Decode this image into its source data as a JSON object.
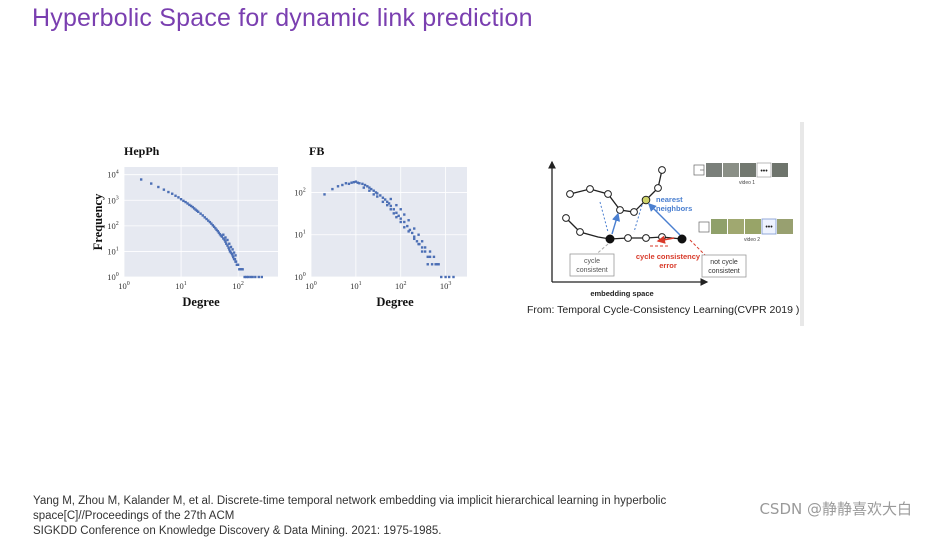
{
  "slide": {
    "title": "Hyperbolic Space for dynamic link prediction"
  },
  "chart_data": [
    {
      "type": "scatter",
      "title": "HepPh",
      "xlabel": "Degree",
      "ylabel": "Frequency",
      "xscale": "log",
      "yscale": "log",
      "xlim": [
        1,
        500
      ],
      "ylim": [
        1,
        20000
      ],
      "xticks": [
        {
          "value": 1,
          "label": "10",
          "exp": "0"
        },
        {
          "value": 10,
          "label": "10",
          "exp": "1"
        },
        {
          "value": 100,
          "label": "10",
          "exp": "2"
        }
      ],
      "yticks": [
        {
          "value": 1,
          "label": "10",
          "exp": "0"
        },
        {
          "value": 10,
          "label": "10",
          "exp": "1"
        },
        {
          "value": 100,
          "label": "10",
          "exp": "2"
        },
        {
          "value": 1000,
          "label": "10",
          "exp": "3"
        },
        {
          "value": 10000,
          "label": "10",
          "exp": "4"
        }
      ],
      "grid": true,
      "color": "#4c6fb5",
      "points": [
        [
          2,
          6500
        ],
        [
          3,
          4500
        ],
        [
          4,
          3300
        ],
        [
          5,
          2600
        ],
        [
          6,
          2100
        ],
        [
          7,
          1800
        ],
        [
          8,
          1500
        ],
        [
          9,
          1300
        ],
        [
          10,
          1100
        ],
        [
          11,
          950
        ],
        [
          12,
          850
        ],
        [
          13,
          750
        ],
        [
          14,
          660
        ],
        [
          15,
          600
        ],
        [
          16,
          540
        ],
        [
          17,
          480
        ],
        [
          18,
          430
        ],
        [
          19,
          390
        ],
        [
          20,
          355
        ],
        [
          22,
          300
        ],
        [
          24,
          255
        ],
        [
          26,
          215
        ],
        [
          28,
          185
        ],
        [
          30,
          160
        ],
        [
          32,
          140
        ],
        [
          34,
          122
        ],
        [
          36,
          105
        ],
        [
          38,
          92
        ],
        [
          40,
          80
        ],
        [
          42,
          70
        ],
        [
          44,
          62
        ],
        [
          46,
          54
        ],
        [
          48,
          47
        ],
        [
          50,
          42
        ],
        [
          52,
          38
        ],
        [
          55,
          32
        ],
        [
          58,
          28
        ],
        [
          60,
          24
        ],
        [
          62,
          20
        ],
        [
          65,
          17
        ],
        [
          68,
          14
        ],
        [
          70,
          12
        ],
        [
          72,
          10
        ],
        [
          75,
          9
        ],
        [
          78,
          8
        ],
        [
          80,
          7
        ],
        [
          82,
          6
        ],
        [
          85,
          5
        ],
        [
          88,
          5
        ],
        [
          90,
          4
        ],
        [
          92,
          4
        ],
        [
          95,
          3
        ],
        [
          98,
          3
        ],
        [
          100,
          3
        ],
        [
          105,
          2
        ],
        [
          110,
          2
        ],
        [
          115,
          2
        ],
        [
          120,
          2
        ],
        [
          130,
          1
        ],
        [
          140,
          1
        ],
        [
          150,
          1
        ],
        [
          165,
          1
        ],
        [
          180,
          1
        ],
        [
          200,
          1
        ],
        [
          230,
          1
        ],
        [
          260,
          1
        ],
        [
          55,
          45
        ],
        [
          60,
          35
        ],
        [
          65,
          28
        ],
        [
          70,
          20
        ],
        [
          75,
          15
        ],
        [
          80,
          12
        ],
        [
          85,
          9
        ],
        [
          90,
          7
        ]
      ]
    },
    {
      "type": "scatter",
      "title": "FB",
      "xlabel": "Degree",
      "ylabel": "",
      "xscale": "log",
      "yscale": "log",
      "xlim": [
        1,
        3000
      ],
      "ylim": [
        1,
        400
      ],
      "xticks": [
        {
          "value": 1,
          "label": "10",
          "exp": "0"
        },
        {
          "value": 10,
          "label": "10",
          "exp": "1"
        },
        {
          "value": 100,
          "label": "10",
          "exp": "2"
        },
        {
          "value": 1000,
          "label": "10",
          "exp": "3"
        }
      ],
      "yticks": [
        {
          "value": 1,
          "label": "10",
          "exp": "0"
        },
        {
          "value": 10,
          "label": "10",
          "exp": "1"
        },
        {
          "value": 100,
          "label": "10",
          "exp": "2"
        }
      ],
      "grid": true,
      "color": "#4c6fb5",
      "points": [
        [
          2,
          90
        ],
        [
          3,
          120
        ],
        [
          4,
          140
        ],
        [
          5,
          150
        ],
        [
          6,
          165
        ],
        [
          7,
          160
        ],
        [
          8,
          170
        ],
        [
          9,
          175
        ],
        [
          10,
          180
        ],
        [
          11,
          170
        ],
        [
          12,
          165
        ],
        [
          14,
          160
        ],
        [
          16,
          150
        ],
        [
          18,
          140
        ],
        [
          20,
          130
        ],
        [
          22,
          120
        ],
        [
          25,
          110
        ],
        [
          28,
          100
        ],
        [
          30,
          95
        ],
        [
          35,
          85
        ],
        [
          40,
          75
        ],
        [
          45,
          68
        ],
        [
          50,
          60
        ],
        [
          55,
          55
        ],
        [
          60,
          48
        ],
        [
          70,
          40
        ],
        [
          80,
          33
        ],
        [
          90,
          28
        ],
        [
          100,
          24
        ],
        [
          120,
          20
        ],
        [
          140,
          16
        ],
        [
          160,
          13
        ],
        [
          180,
          11
        ],
        [
          200,
          9
        ],
        [
          230,
          7
        ],
        [
          260,
          6
        ],
        [
          300,
          5
        ],
        [
          350,
          4
        ],
        [
          400,
          3
        ],
        [
          450,
          3
        ],
        [
          500,
          2
        ],
        [
          600,
          2
        ],
        [
          700,
          2
        ],
        [
          800,
          1
        ],
        [
          1000,
          1
        ],
        [
          1200,
          1
        ],
        [
          1500,
          1
        ],
        [
          15,
          130
        ],
        [
          20,
          110
        ],
        [
          25,
          90
        ],
        [
          30,
          80
        ],
        [
          40,
          60
        ],
        [
          50,
          50
        ],
        [
          60,
          40
        ],
        [
          70,
          32
        ],
        [
          80,
          26
        ],
        [
          100,
          20
        ],
        [
          120,
          15
        ],
        [
          150,
          12
        ],
        [
          200,
          8
        ],
        [
          250,
          6
        ],
        [
          300,
          4
        ],
        [
          400,
          2
        ],
        [
          60,
          70
        ],
        [
          80,
          50
        ],
        [
          100,
          40
        ],
        [
          120,
          30
        ],
        [
          150,
          22
        ],
        [
          200,
          14
        ],
        [
          250,
          10
        ],
        [
          300,
          7
        ],
        [
          350,
          5
        ],
        [
          450,
          4
        ],
        [
          550,
          3
        ],
        [
          650,
          2
        ]
      ]
    }
  ],
  "diagram": {
    "labels": {
      "nearest_neighbors_line1": "nearest",
      "nearest_neighbors_line2": "neighbors",
      "cycle_consistent_line1": "cycle",
      "cycle_consistent_line2": "consistent",
      "cycle_error_line1": "cycle consistency",
      "cycle_error_line2": "error",
      "not_consistent_line1": "not cycle",
      "not_consistent_line2": "consistent",
      "embedding_space": "embedding space",
      "video1": "video 1",
      "video2": "video 2"
    },
    "colors": {
      "blue": "#4a7fd0",
      "red": "#d83a2a",
      "node_yellow": "#cfd46a"
    }
  },
  "caption": "From: Temporal Cycle-Consistency Learning(CVPR 2019 )",
  "reference": {
    "line1": "Yang M, Zhou M, Kalander M, et al. Discrete-time temporal network embedding via implicit hierarchical learning in hyperbolic space[C]//Proceedings of the 27th ACM",
    "line2": "SIGKDD Conference on Knowledge Discovery & Data Mining. 2021: 1975-1985."
  },
  "watermark": "CSDN @静静喜欢大白"
}
